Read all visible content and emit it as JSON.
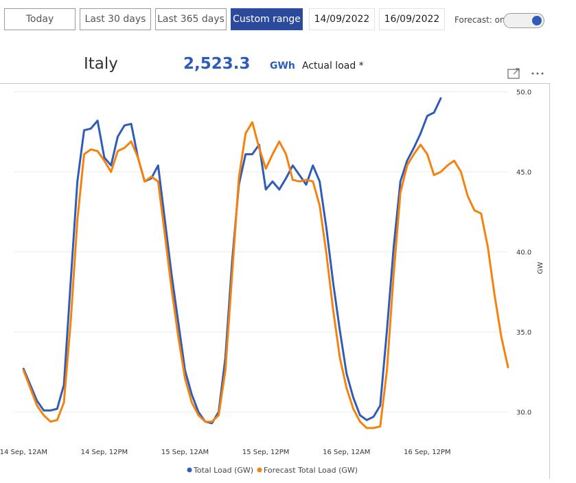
{
  "toolbar": {
    "buttons": [
      "Today",
      "Last 30 days",
      "Last 365 days",
      "Custom range"
    ],
    "start_date": "14/09/2022",
    "end_date": "16/09/2022",
    "forecast_label": "Forecast: on"
  },
  "header": {
    "region": "Italy",
    "value": "2,523.3",
    "unit": "GWh",
    "measure": "Actual load *"
  },
  "chart_data": {
    "type": "line",
    "ylabel": "GW",
    "x": [
      "2022-09-14T00:00",
      "2022-09-14T01:00",
      "2022-09-14T02:00",
      "2022-09-14T03:00",
      "2022-09-14T04:00",
      "2022-09-14T05:00",
      "2022-09-14T06:00",
      "2022-09-14T07:00",
      "2022-09-14T08:00",
      "2022-09-14T09:00",
      "2022-09-14T10:00",
      "2022-09-14T11:00",
      "2022-09-14T12:00",
      "2022-09-14T13:00",
      "2022-09-14T14:00",
      "2022-09-14T15:00",
      "2022-09-14T16:00",
      "2022-09-14T17:00",
      "2022-09-14T18:00",
      "2022-09-14T19:00",
      "2022-09-14T20:00",
      "2022-09-14T21:00",
      "2022-09-14T22:00",
      "2022-09-14T23:00",
      "2022-09-15T00:00",
      "2022-09-15T01:00",
      "2022-09-15T02:00",
      "2022-09-15T03:00",
      "2022-09-15T04:00",
      "2022-09-15T05:00",
      "2022-09-15T06:00",
      "2022-09-15T07:00",
      "2022-09-15T08:00",
      "2022-09-15T09:00",
      "2022-09-15T10:00",
      "2022-09-15T11:00",
      "2022-09-15T12:00",
      "2022-09-15T13:00",
      "2022-09-15T14:00",
      "2022-09-15T15:00",
      "2022-09-15T16:00",
      "2022-09-15T17:00",
      "2022-09-15T18:00",
      "2022-09-15T19:00",
      "2022-09-15T20:00",
      "2022-09-15T21:00",
      "2022-09-15T22:00",
      "2022-09-15T23:00",
      "2022-09-16T00:00",
      "2022-09-16T01:00",
      "2022-09-16T02:00",
      "2022-09-16T03:00",
      "2022-09-16T04:00",
      "2022-09-16T05:00",
      "2022-09-16T06:00",
      "2022-09-16T07:00",
      "2022-09-16T08:00",
      "2022-09-16T09:00",
      "2022-09-16T10:00",
      "2022-09-16T11:00",
      "2022-09-16T12:00",
      "2022-09-16T13:00",
      "2022-09-16T14:00",
      "2022-09-16T15:00",
      "2022-09-16T16:00",
      "2022-09-16T17:00",
      "2022-09-16T18:00",
      "2022-09-16T19:00",
      "2022-09-16T20:00",
      "2022-09-16T21:00",
      "2022-09-16T22:00",
      "2022-09-16T23:00",
      "2022-09-17T00:00"
    ],
    "series": [
      {
        "name": "Total Load (GW)",
        "color": "#2e5cb8",
        "values": [
          32.7,
          31.7,
          30.7,
          30.1,
          30.1,
          30.2,
          31.7,
          38.1,
          44.4,
          47.6,
          47.7,
          48.2,
          45.9,
          45.4,
          47.2,
          47.9,
          48.0,
          45.9,
          44.4,
          44.6,
          45.4,
          42.0,
          38.6,
          35.6,
          32.6,
          31.1,
          30.0,
          29.4,
          29.3,
          30.0,
          33.4,
          39.4,
          44.2,
          46.1,
          46.1,
          46.7,
          43.9,
          44.4,
          43.9,
          44.6,
          45.4,
          44.8,
          44.2,
          45.4,
          44.4,
          41.5,
          38.1,
          35.1,
          32.4,
          30.9,
          29.8,
          29.5,
          29.7,
          30.4,
          35.1,
          40.3,
          44.4,
          45.7,
          46.5,
          47.4,
          48.5,
          48.7,
          49.6,
          null,
          null,
          null,
          null,
          null,
          null,
          null,
          null,
          null,
          null
        ]
      },
      {
        "name": "Forecast Total Load (GW)",
        "color": "#f5820d",
        "values": [
          32.6,
          31.5,
          30.4,
          29.8,
          29.4,
          29.5,
          30.6,
          35.6,
          42.0,
          46.1,
          46.4,
          46.3,
          45.7,
          45.0,
          46.3,
          46.5,
          46.9,
          45.9,
          44.4,
          44.7,
          44.4,
          41.1,
          37.7,
          34.7,
          32.1,
          30.6,
          29.8,
          29.4,
          29.4,
          29.8,
          32.6,
          38.6,
          44.6,
          47.4,
          48.1,
          46.5,
          45.2,
          46.1,
          46.9,
          46.1,
          44.5,
          44.4,
          44.5,
          44.4,
          42.9,
          39.9,
          36.4,
          33.4,
          31.5,
          30.2,
          29.4,
          29.0,
          29.0,
          29.1,
          32.6,
          38.6,
          43.7,
          45.4,
          46.1,
          46.7,
          46.1,
          44.8,
          45.0,
          45.4,
          45.7,
          45.0,
          43.5,
          42.6,
          42.4,
          40.3,
          37.3,
          34.7,
          32.8
        ]
      }
    ],
    "xlim": [
      "2022-09-13T20:30",
      "2022-09-17T00:00"
    ],
    "xticks": [
      {
        "value": "2022-09-14T00:00",
        "label": "14 Sep, 12AM"
      },
      {
        "value": "2022-09-14T12:00",
        "label": "14 Sep, 12PM"
      },
      {
        "value": "2022-09-15T00:00",
        "label": "15 Sep, 12AM"
      },
      {
        "value": "2022-09-15T12:00",
        "label": "15 Sep, 12PM"
      },
      {
        "value": "2022-09-16T00:00",
        "label": "16 Sep, 12AM"
      },
      {
        "value": "2022-09-16T12:00",
        "label": "16 Sep, 12PM"
      }
    ],
    "ylim": [
      28.7,
      50.5
    ],
    "yticks": [
      {
        "value": 30,
        "label": "30.0"
      },
      {
        "value": 35,
        "label": "35.0"
      },
      {
        "value": 40,
        "label": "40.0"
      },
      {
        "value": 45,
        "label": "45.0"
      },
      {
        "value": 50,
        "label": "50.0"
      }
    ],
    "grid": true,
    "legend": "bottom"
  }
}
